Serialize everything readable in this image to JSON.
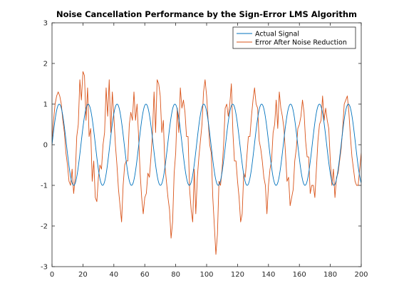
{
  "chart_data": {
    "type": "line",
    "title": "Noise Cancellation Performance by the Sign-Error LMS Algorithm",
    "xlabel": "",
    "ylabel": "",
    "xlim": [
      0,
      200
    ],
    "ylim": [
      -3,
      3
    ],
    "xticks": [
      0,
      20,
      40,
      60,
      80,
      100,
      120,
      140,
      160,
      180,
      200
    ],
    "yticks": [
      -3,
      -2,
      -1,
      0,
      1,
      2,
      3
    ],
    "grid": false,
    "legend_position": "top-right",
    "series": [
      {
        "name": "Actual Signal",
        "color": "#0072BD",
        "generator": "sine",
        "period": 18.7,
        "amplitude": 1
      },
      {
        "name": "Error After Noise Reduction",
        "color": "#D95319",
        "x": [
          0,
          1,
          2,
          3,
          4,
          5,
          6,
          7,
          8,
          9,
          10,
          11,
          12,
          13,
          14,
          15,
          16,
          17,
          18,
          19,
          20,
          21,
          22,
          23,
          24,
          25,
          26,
          27,
          28,
          29,
          30,
          31,
          32,
          33,
          34,
          35,
          36,
          37,
          38,
          39,
          40,
          41,
          42,
          43,
          44,
          45,
          46,
          47,
          48,
          49,
          50,
          51,
          52,
          53,
          54,
          55,
          56,
          57,
          58,
          59,
          60,
          61,
          62,
          63,
          64,
          65,
          66,
          67,
          68,
          69,
          70,
          71,
          72,
          73,
          74,
          75,
          76,
          77,
          78,
          79,
          80,
          81,
          82,
          83,
          84,
          85,
          86,
          87,
          88,
          89,
          90,
          91,
          92,
          93,
          94,
          95,
          96,
          97,
          98,
          99,
          100,
          101,
          102,
          103,
          104,
          105,
          106,
          107,
          108,
          109,
          110,
          111,
          112,
          113,
          114,
          115,
          116,
          117,
          118,
          119,
          120,
          121,
          122,
          123,
          124,
          125,
          126,
          127,
          128,
          129,
          130,
          131,
          132,
          133,
          134,
          135,
          136,
          137,
          138,
          139,
          140,
          141,
          142,
          143,
          144,
          145,
          146,
          147,
          148,
          149,
          150,
          151,
          152,
          153,
          154,
          155,
          156,
          157,
          158,
          159,
          160,
          161,
          162,
          163,
          164,
          165,
          166,
          167,
          168,
          169,
          170,
          171,
          172,
          173,
          174,
          175,
          176,
          177,
          178,
          179,
          180,
          181,
          182,
          183,
          184,
          185,
          186,
          187,
          188,
          189,
          190,
          191,
          192,
          193,
          194,
          195,
          196,
          197,
          198,
          199,
          200
        ],
        "values": [
          0.1,
          0.6,
          1.0,
          1.2,
          1.3,
          1.2,
          1.0,
          0.6,
          0.3,
          -0.2,
          -0.5,
          -0.9,
          -1.0,
          -0.6,
          -1.2,
          -0.8,
          0.2,
          0.5,
          1.6,
          1.1,
          1.8,
          1.7,
          0.6,
          1.4,
          0.2,
          0.4,
          -0.9,
          -0.4,
          -1.3,
          -1.4,
          -0.8,
          -0.5,
          -0.6,
          0.0,
          0.3,
          1.4,
          0.7,
          1.6,
          0.3,
          1.3,
          0.7,
          0.0,
          -0.5,
          -1.1,
          -1.5,
          -1.9,
          -1.0,
          -0.5,
          -0.4,
          -0.4,
          0.5,
          0.8,
          0.6,
          1.3,
          0.6,
          1.0,
          0.2,
          -0.7,
          -1.3,
          -1.7,
          -1.3,
          -1.2,
          -0.7,
          -0.8,
          -0.3,
          0.3,
          1.3,
          0.3,
          1.6,
          1.5,
          1.2,
          0.3,
          0.6,
          -0.5,
          -0.9,
          -1.3,
          -1.6,
          -2.3,
          -1.9,
          -0.7,
          -0.2,
          0.9,
          0.3,
          1.4,
          0.9,
          1.1,
          0.8,
          0.2,
          0.2,
          -1.1,
          -1.6,
          -1.9,
          -0.6,
          -1.7,
          -0.8,
          -0.3,
          0.1,
          0.5,
          1.3,
          1.6,
          1.2,
          0.6,
          0.0,
          -0.2,
          -1.3,
          -2.0,
          -2.7,
          -2.2,
          -0.9,
          -1.0,
          -0.6,
          0.0,
          0.9,
          1.0,
          0.7,
          1.0,
          1.5,
          0.3,
          -0.4,
          -0.4,
          -0.9,
          -1.3,
          -1.9,
          -1.7,
          -0.7,
          -0.8,
          -0.3,
          0.2,
          0.2,
          0.7,
          1.1,
          1.4,
          1.0,
          0.9,
          0.1,
          -0.1,
          -0.4,
          -0.8,
          -1.0,
          -1.7,
          -1.0,
          -0.6,
          -0.4,
          0.3,
          0.5,
          1.1,
          0.4,
          1.3,
          0.9,
          0.7,
          0.4,
          -0.2,
          -0.9,
          -0.8,
          -1.5,
          -1.3,
          -1.1,
          -0.4,
          -0.1,
          0.4,
          0.5,
          0.7,
          1.1,
          0.8,
          0.1,
          -0.3,
          -0.3,
          -1.2,
          -1.0,
          -1.0,
          -1.3,
          -0.6,
          0.1,
          0.5,
          0.6,
          1.2,
          0.6,
          0.9,
          0.6,
          0.4,
          -0.4,
          -1.0,
          -0.6,
          -1.3,
          -0.8,
          -0.7,
          -0.4,
          -0.1,
          0.4,
          1.0,
          1.1,
          1.2,
          0.8,
          0.2,
          -0.3,
          -0.6,
          -0.9,
          -1.0,
          -1.0,
          -0.6,
          -0.2
        ]
      }
    ]
  }
}
